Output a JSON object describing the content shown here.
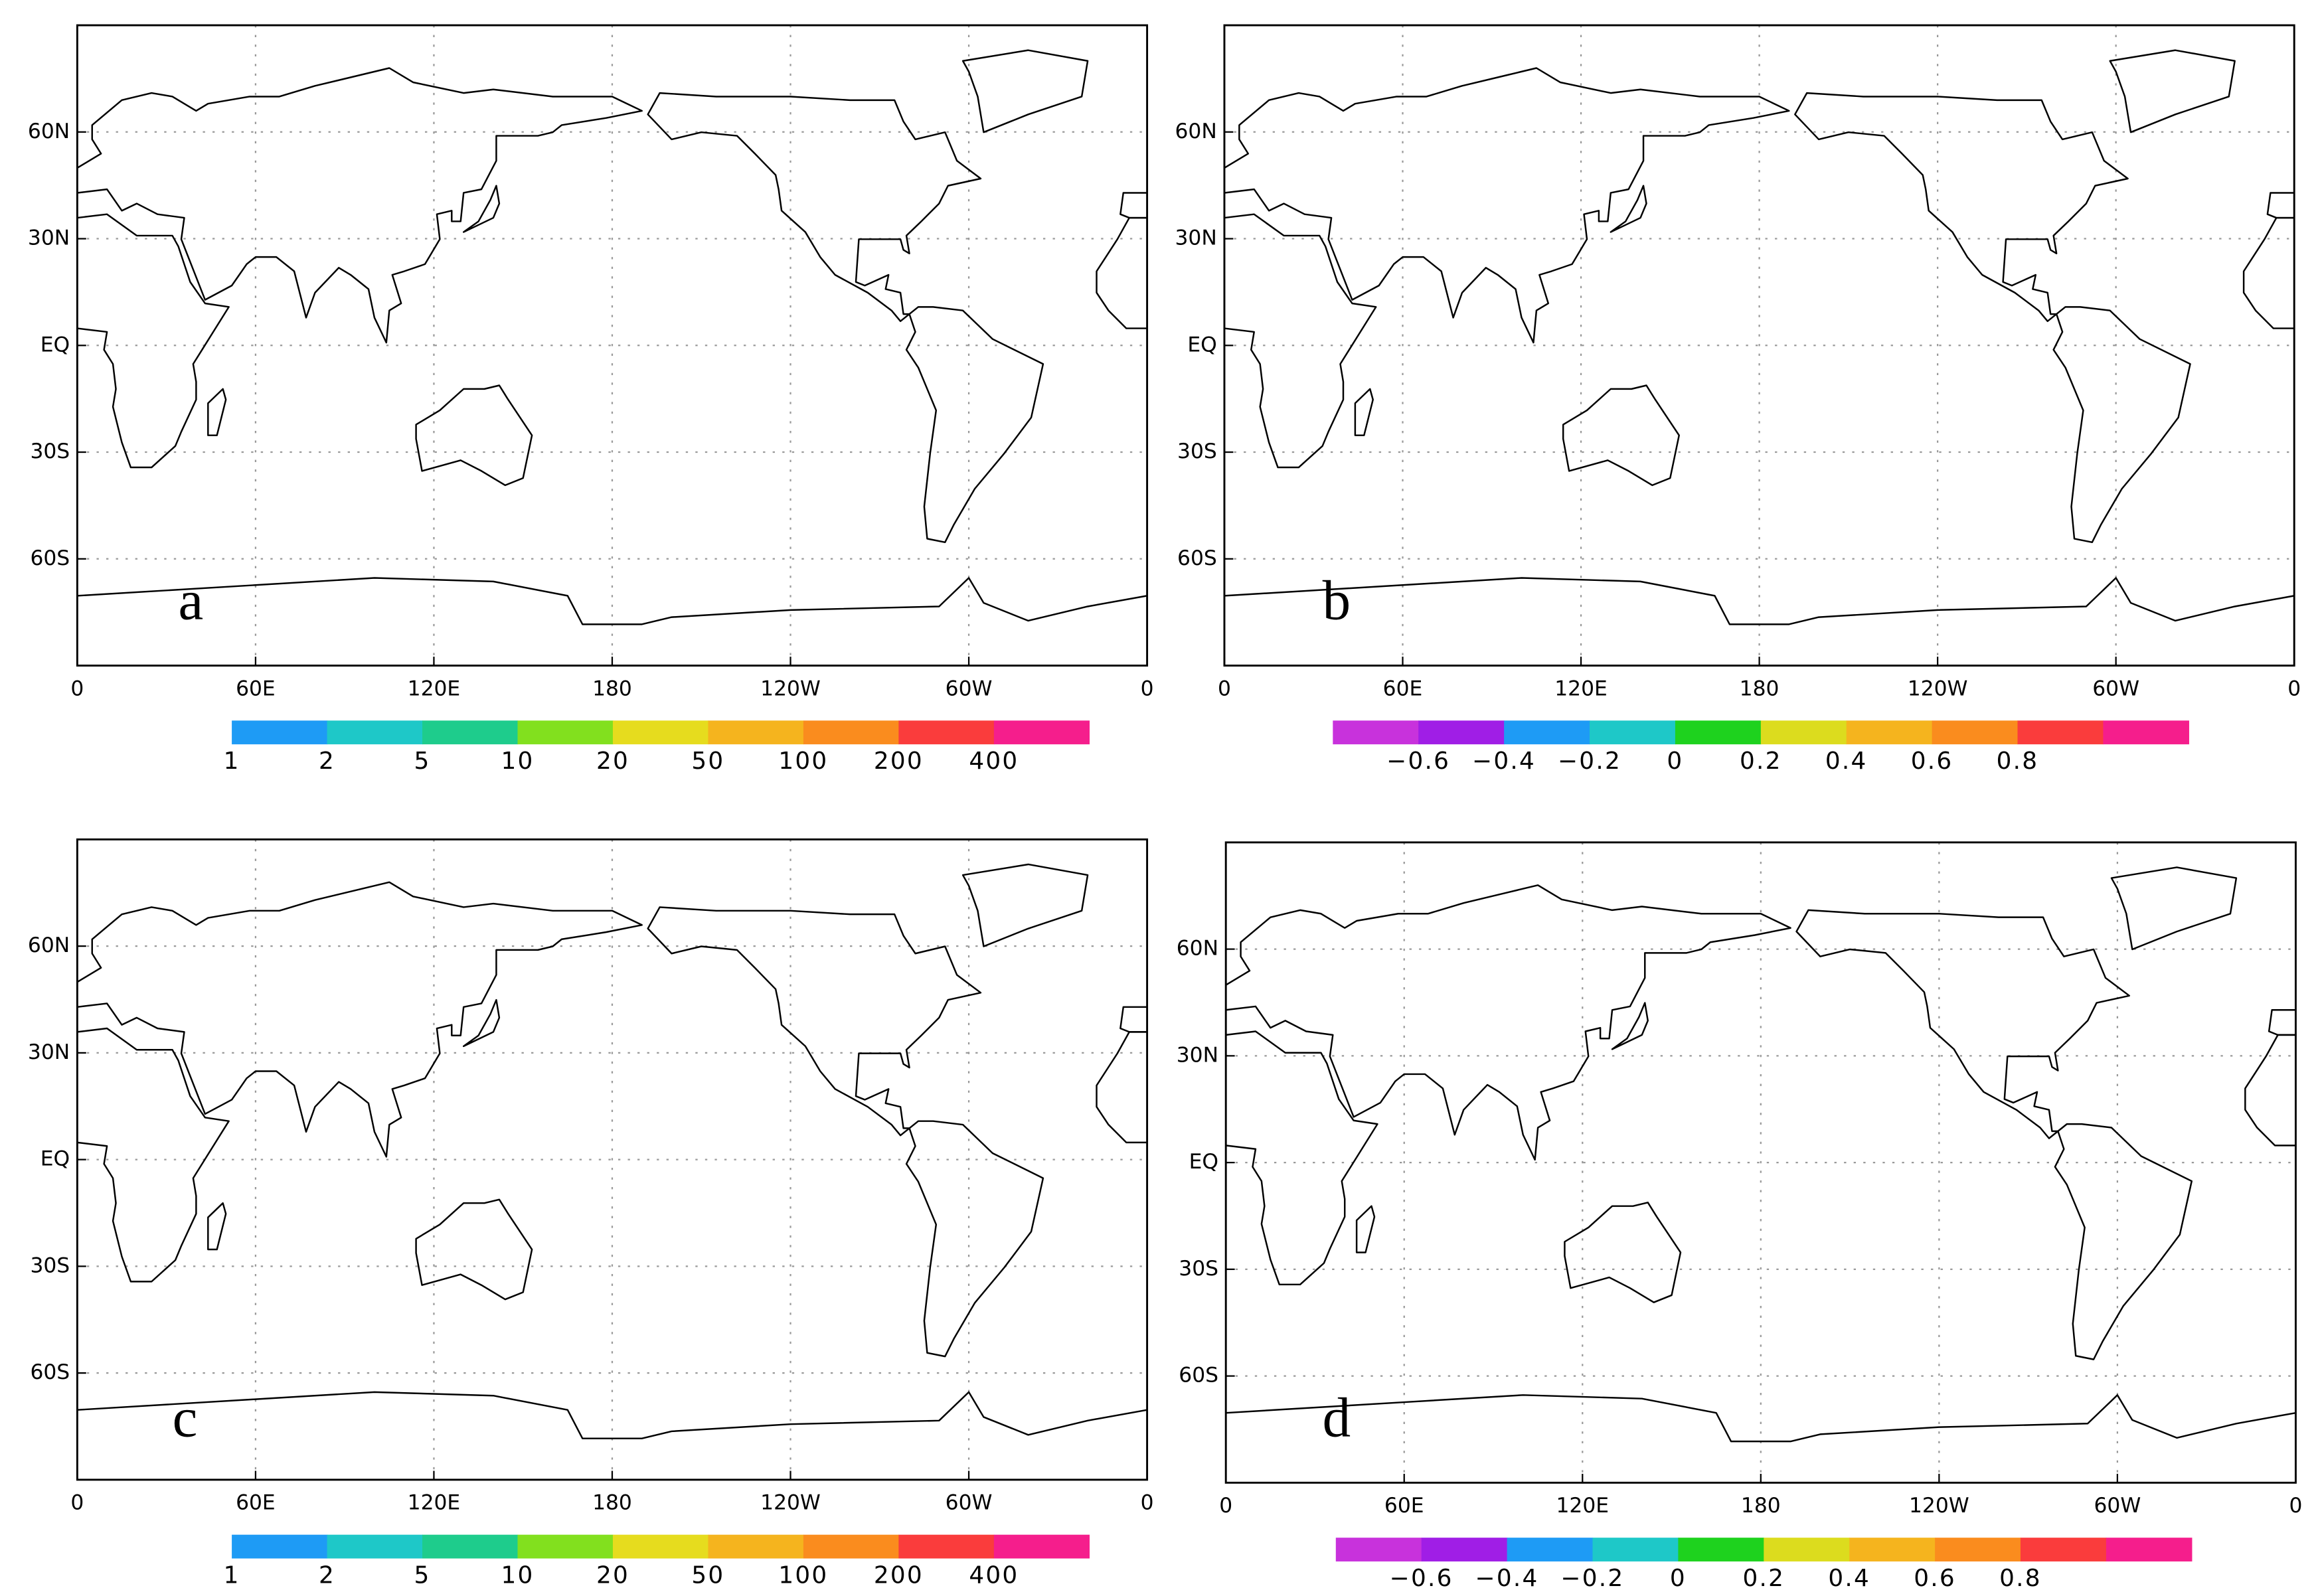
{
  "panels": [
    {
      "label": "a",
      "xlim": [
        0,
        360
      ],
      "ylim": [
        -90,
        90
      ],
      "xticks": [
        0,
        {
          "value": 60,
          "label": "60E"
        },
        {
          "value": 120,
          "label": "120E"
        },
        180,
        {
          "value": 240,
          "label": "120W"
        },
        {
          "value": 300,
          "label": "60W"
        },
        {
          "value": 360,
          "label": "0"
        }
      ],
      "yticks": [
        {
          "value": -60,
          "label": "60S"
        },
        {
          "value": -30,
          "label": "30S"
        },
        {
          "value": 0,
          "label": "EQ"
        },
        {
          "value": 30,
          "label": "30N"
        },
        {
          "value": 60,
          "label": "60N"
        }
      ],
      "colorbar": {
        "colors": [
          "#1e9bf5",
          "#1ec8c8",
          "#1ecc8c",
          "#82e01e",
          "#e6dc1e",
          "#f5b41e",
          "#fa8c1e",
          "#fa3c3c",
          "#f51e8c"
        ],
        "labels": [
          "1",
          "2",
          "5",
          "10",
          "20",
          "50",
          "100",
          "200",
          "400",
          null
        ]
      }
    },
    {
      "label": "b",
      "xlim": [
        0,
        360
      ],
      "ylim": [
        -90,
        90
      ],
      "xticks": [
        0,
        {
          "value": 60,
          "label": "60E"
        },
        {
          "value": 120,
          "label": "120E"
        },
        180,
        {
          "value": 240,
          "label": "120W"
        },
        {
          "value": 300,
          "label": "60W"
        },
        {
          "value": 360,
          "label": "0"
        }
      ],
      "yticks": [
        {
          "value": -60,
          "label": "60S"
        },
        {
          "value": -30,
          "label": "30S"
        },
        {
          "value": 0,
          "label": "EQ"
        },
        {
          "value": 30,
          "label": "30N"
        },
        {
          "value": 60,
          "label": "60N"
        }
      ],
      "colorbar": {
        "colors": [
          "#c832dc",
          "#a01ee6",
          "#1e9bf5",
          "#1ec8c8",
          "#1ed21e",
          "#dcdc1e",
          "#f5b41e",
          "#fa8c1e",
          "#fa3c3c",
          "#f51e8c"
        ],
        "labels": [
          null,
          "−0.6",
          "−0.4",
          "−0.2",
          "0",
          "0.2",
          "0.4",
          "0.6",
          "0.8",
          null,
          null
        ]
      }
    },
    {
      "label": "c",
      "xlim": [
        0,
        360
      ],
      "ylim": [
        -90,
        90
      ],
      "xticks": [
        0,
        {
          "value": 60,
          "label": "60E"
        },
        {
          "value": 120,
          "label": "120E"
        },
        180,
        {
          "value": 240,
          "label": "120W"
        },
        {
          "value": 300,
          "label": "60W"
        },
        {
          "value": 360,
          "label": "0"
        }
      ],
      "yticks": [
        {
          "value": -60,
          "label": "60S"
        },
        {
          "value": -30,
          "label": "30S"
        },
        {
          "value": 0,
          "label": "EQ"
        },
        {
          "value": 30,
          "label": "30N"
        },
        {
          "value": 60,
          "label": "60N"
        }
      ],
      "colorbar": {
        "colors": [
          "#1e9bf5",
          "#1ec8c8",
          "#1ecc8c",
          "#82e01e",
          "#e6dc1e",
          "#f5b41e",
          "#fa8c1e",
          "#fa3c3c",
          "#f51e8c"
        ],
        "labels": [
          "1",
          "2",
          "5",
          "10",
          "20",
          "50",
          "100",
          "200",
          "400",
          null
        ]
      }
    },
    {
      "label": "d",
      "xlim": [
        0,
        360
      ],
      "ylim": [
        -90,
        90
      ],
      "xticks": [
        0,
        {
          "value": 60,
          "label": "60E"
        },
        {
          "value": 120,
          "label": "120E"
        },
        180,
        {
          "value": 240,
          "label": "120W"
        },
        {
          "value": 300,
          "label": "60W"
        },
        {
          "value": 360,
          "label": "0"
        }
      ],
      "yticks": [
        {
          "value": -60,
          "label": "60S"
        },
        {
          "value": -30,
          "label": "30S"
        },
        {
          "value": 0,
          "label": "EQ"
        },
        {
          "value": 30,
          "label": "30N"
        },
        {
          "value": 60,
          "label": "60N"
        }
      ],
      "colorbar": {
        "colors": [
          "#c832dc",
          "#a01ee6",
          "#1e9bf5",
          "#1ec8c8",
          "#1ed21e",
          "#dcdc1e",
          "#f5b41e",
          "#fa8c1e",
          "#fa3c3c",
          "#f51e8c"
        ],
        "labels": [
          null,
          "−0.6",
          "−0.4",
          "−0.2",
          "0",
          "0.2",
          "0.4",
          "0.6",
          "0.8",
          null,
          null
        ]
      }
    }
  ]
}
